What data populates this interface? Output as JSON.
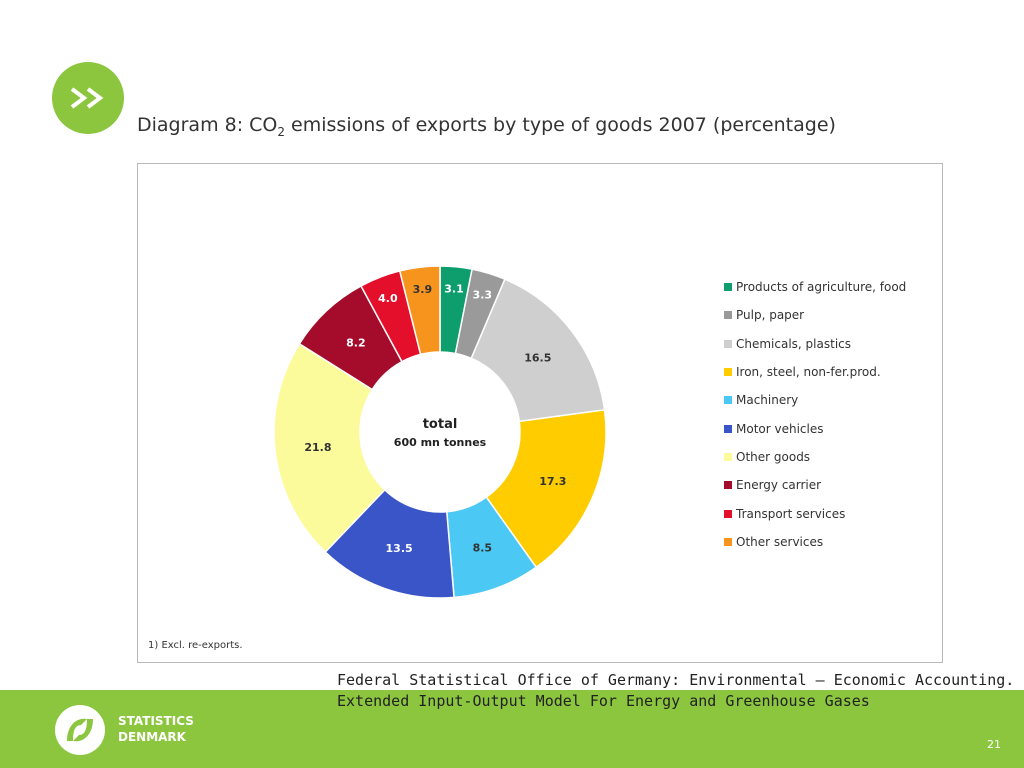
{
  "slide": {
    "title_prefix": "Diagram 8: CO",
    "title_subscript": "2",
    "title_suffix": " emissions of exports by type of goods 2007 (percentage)",
    "badge_icon": "double-chevron-right-icon",
    "footnote": "1) Excl. re-exports.",
    "source_line1": "Federal Statistical Office of Germany: Environmental – Economic Accounting.",
    "source_line2": "Extended Input-Output Model For Energy and Greenhouse Gases",
    "logo_line1": "STATISTICS",
    "logo_line2": "DENMARK",
    "page_number": "21",
    "accent_color": "#8cc63f"
  },
  "chart_data": {
    "type": "pie",
    "donut": true,
    "center_label_line1": "total",
    "center_label_line2": "600 mn tonnes",
    "legend_position": "right",
    "slices": [
      {
        "label": "Products of agriculture, food",
        "value": 3.1,
        "color": "#0e9e6e"
      },
      {
        "label": "Pulp, paper",
        "value": 3.3,
        "color": "#9a9a9a"
      },
      {
        "label": "Chemicals, plastics",
        "value": 16.5,
        "color": "#cfcfcf"
      },
      {
        "label": "Iron, steel, non-fer.prod.",
        "value": 17.3,
        "color": "#ffcc00"
      },
      {
        "label": "Machinery",
        "value": 8.5,
        "color": "#4cc8f4"
      },
      {
        "label": "Motor vehicles",
        "value": 13.5,
        "color": "#3a55c7"
      },
      {
        "label": "Other goods",
        "value": 21.8,
        "color": "#fbfb9c"
      },
      {
        "label": "Energy carrier",
        "value": 8.2,
        "color": "#a50b2a"
      },
      {
        "label": "Transport services",
        "value": 4.0,
        "color": "#e30f2b"
      },
      {
        "label": "Other services",
        "value": 3.9,
        "color": "#f7941d"
      }
    ]
  }
}
